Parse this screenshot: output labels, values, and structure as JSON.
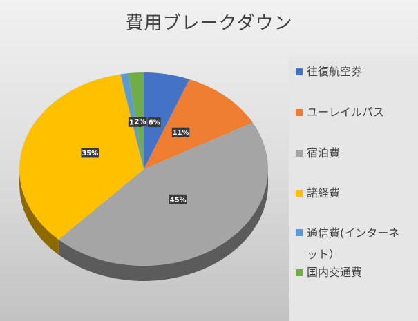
{
  "chart_data": {
    "type": "pie",
    "style": "3d",
    "title": "費用ブレークダウン",
    "categories": [
      "往復航空券",
      "ユーレイルパス",
      "宿泊費",
      "諸経費",
      "通信費(インターネット）",
      "国内交通費"
    ],
    "values": [
      6,
      11,
      45,
      35,
      1,
      2
    ],
    "unit": "%",
    "colors": [
      "#4472C4",
      "#ED7D31",
      "#A5A5A5",
      "#FFC000",
      "#5B9BD5",
      "#70AD47"
    ],
    "legend": "right",
    "data_labels": true
  }
}
